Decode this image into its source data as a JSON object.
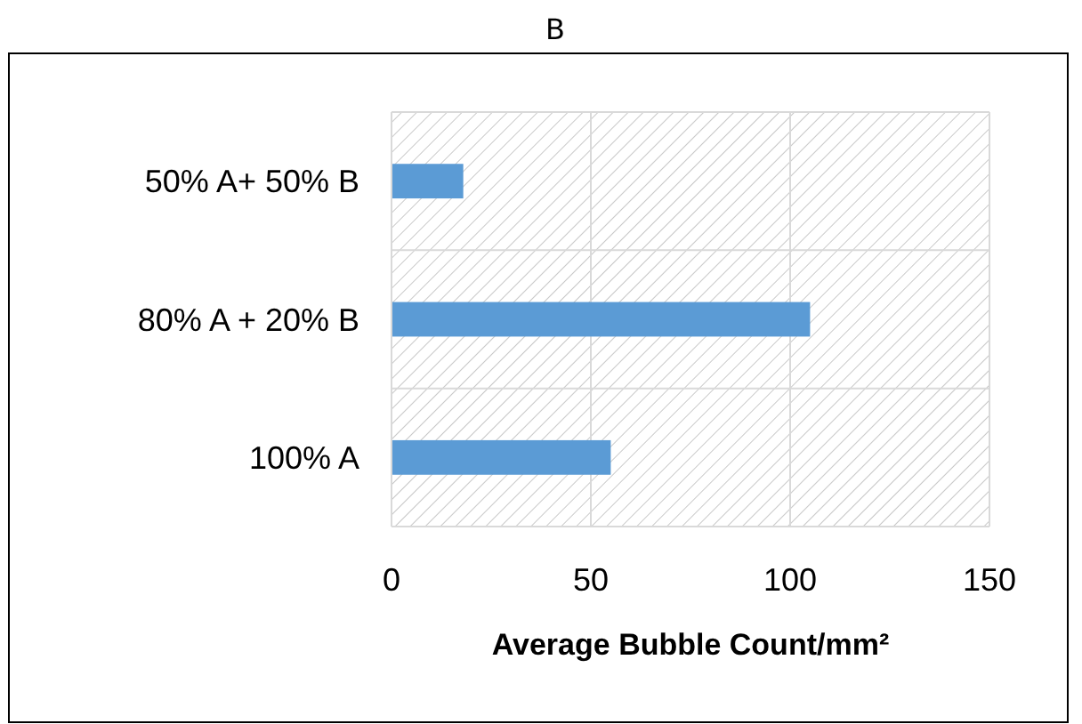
{
  "chart_data": {
    "type": "bar",
    "orientation": "horizontal",
    "title": "B",
    "xlabel": "Average Bubble Count/mm²",
    "categories": [
      "50% A+ 50% B",
      "80% A + 20% B",
      "100% A"
    ],
    "values": [
      18,
      105,
      55
    ],
    "color": "#5b9bd5",
    "xlim": [
      0,
      150
    ],
    "xticks": [
      0,
      50,
      100,
      150
    ],
    "grid": true
  }
}
